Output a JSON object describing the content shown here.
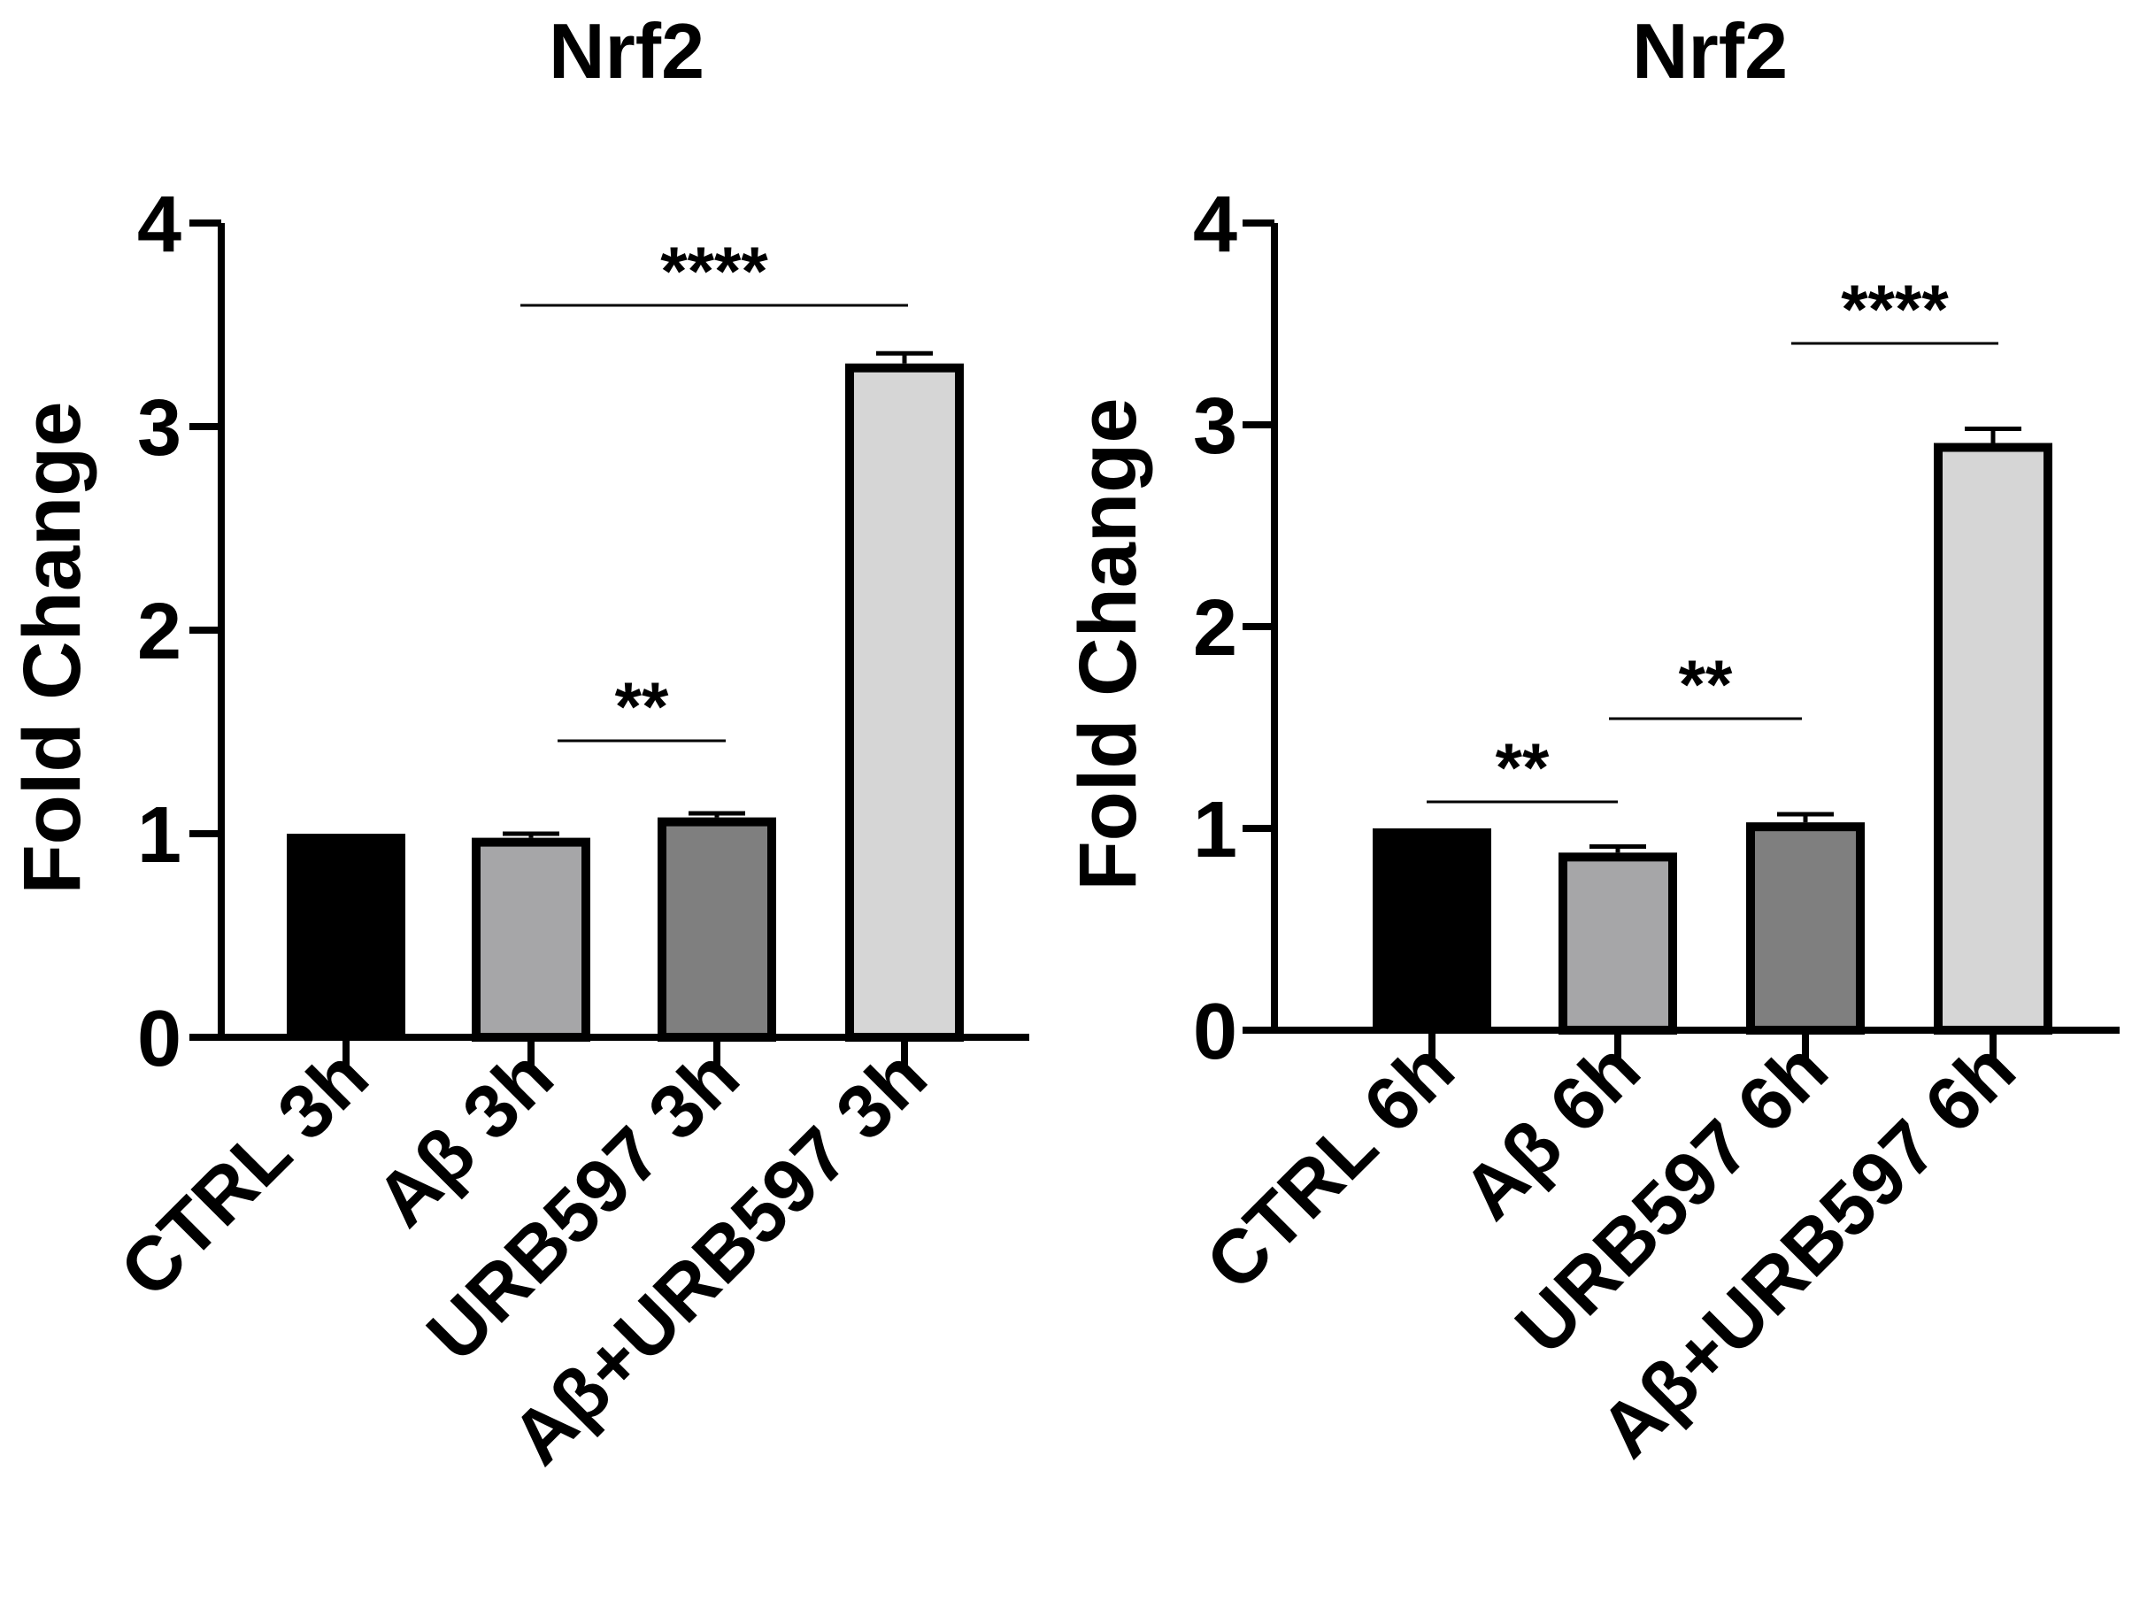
{
  "chart_data": [
    {
      "type": "bar",
      "title": "Nrf2",
      "xlabel": "",
      "ylabel": "Fold Change",
      "ylim": [
        0,
        4
      ],
      "yticks": [
        "0",
        "1",
        "2",
        "3",
        "4"
      ],
      "categories": [
        "CTRL 3h",
        "Aβ 3h",
        "URB597 3h",
        "Aβ+URB597 3h"
      ],
      "values": [
        1.0,
        0.98,
        1.08,
        3.31
      ],
      "errors": [
        0.0,
        0.02,
        0.02,
        0.05
      ],
      "bar_colors": [
        "#000000",
        "#a6a6a8",
        "#7f7f7f",
        "#d6d6d6"
      ],
      "significance": [
        {
          "from": 2,
          "to": 2,
          "label": "**"
        },
        {
          "from": 1,
          "to": 3,
          "label": "****"
        }
      ]
    },
    {
      "type": "bar",
      "title": "Nrf2",
      "xlabel": "",
      "ylabel": "Fold Change",
      "ylim": [
        0,
        4
      ],
      "yticks": [
        "0",
        "1",
        "2",
        "3",
        "4"
      ],
      "categories": [
        "CTRL 6h",
        "Aβ 6h",
        "URB597 6h",
        "Aβ+URB597 6h"
      ],
      "values": [
        1.0,
        0.88,
        1.03,
        2.91
      ],
      "errors": [
        0.0,
        0.03,
        0.04,
        0.07
      ],
      "bar_colors": [
        "#000000",
        "#a6a6a8",
        "#7f7f7f",
        "#d6d6d6"
      ],
      "significance": [
        {
          "from": 0,
          "to": 1,
          "label": "**"
        },
        {
          "from": 1,
          "to": 2,
          "label": "**"
        },
        {
          "from": 3,
          "to": 3,
          "label": "****"
        }
      ]
    }
  ]
}
